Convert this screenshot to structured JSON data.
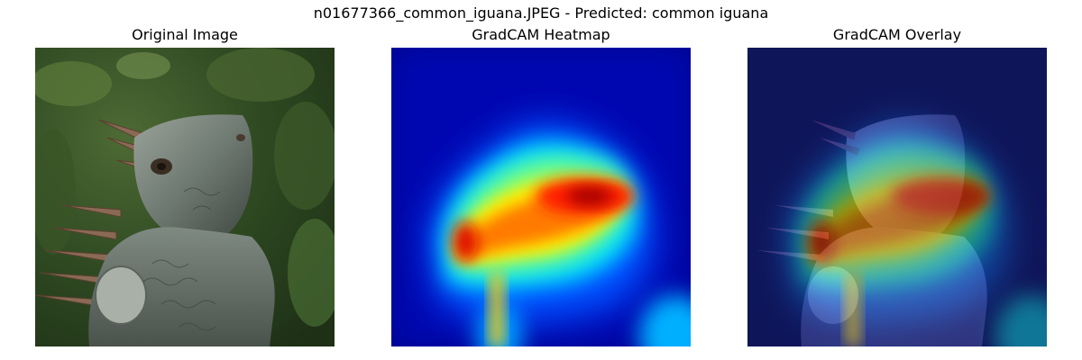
{
  "figure": {
    "suptitle": "n01677366_common_iguana.JPEG - Predicted: common iguana"
  },
  "panels": [
    {
      "title": "Original Image"
    },
    {
      "title": "GradCAM Heatmap"
    },
    {
      "title": "GradCAM Overlay"
    }
  ]
}
